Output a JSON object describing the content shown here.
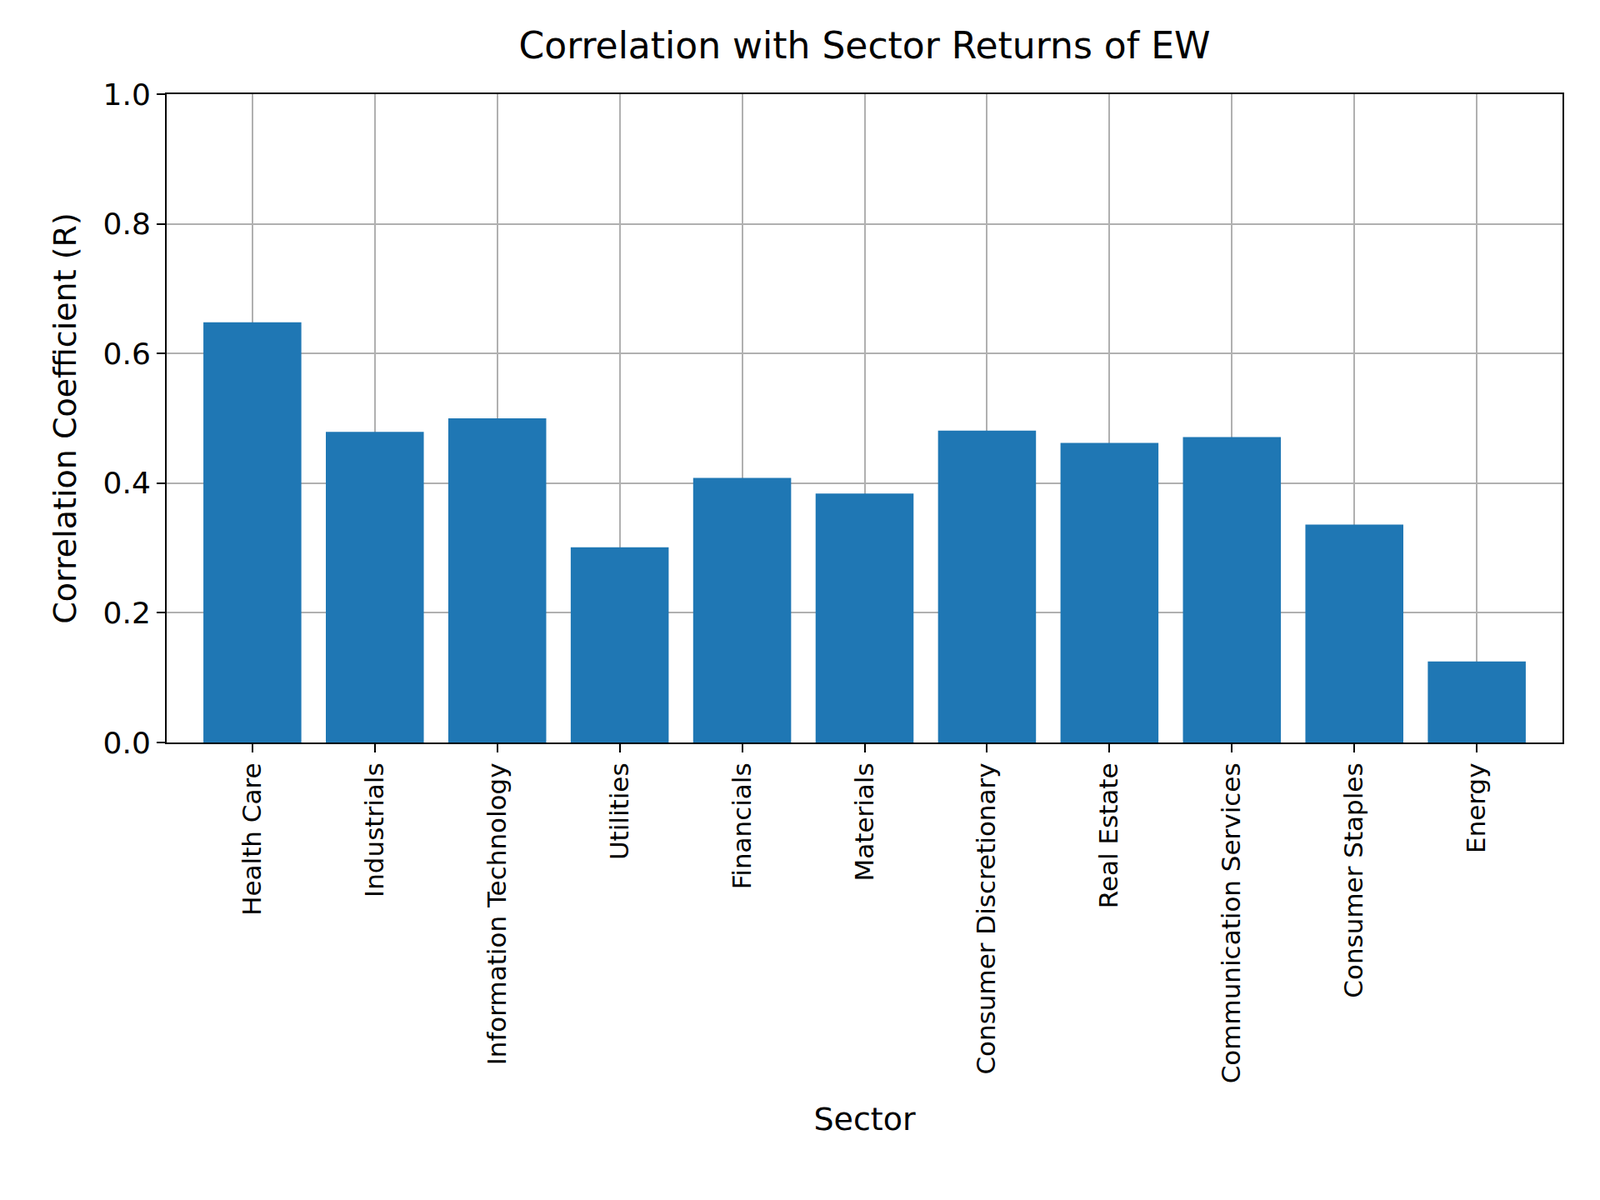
{
  "chart_data": {
    "type": "bar",
    "title": "Correlation with Sector Returns of EW",
    "x_label": "Sector",
    "y_label": "Correlation Coefficient (R)",
    "categories": [
      "Health Care",
      "Industrials",
      "Information Technology",
      "Utilities",
      "Financials",
      "Materials",
      "Consumer Discretionary",
      "Real Estate",
      "Communication Services",
      "Consumer Staples",
      "Energy"
    ],
    "values": [
      0.648,
      0.479,
      0.5,
      0.301,
      0.408,
      0.384,
      0.481,
      0.462,
      0.471,
      0.336,
      0.125
    ],
    "color": "#1f77b4",
    "ylim": [
      0,
      1
    ],
    "yticks": [
      {
        "value": 0,
        "label": "0.0"
      },
      0.2,
      0.4,
      0.6,
      0.8,
      {
        "value": 1,
        "label": "1.0"
      }
    ],
    "grid": true
  }
}
